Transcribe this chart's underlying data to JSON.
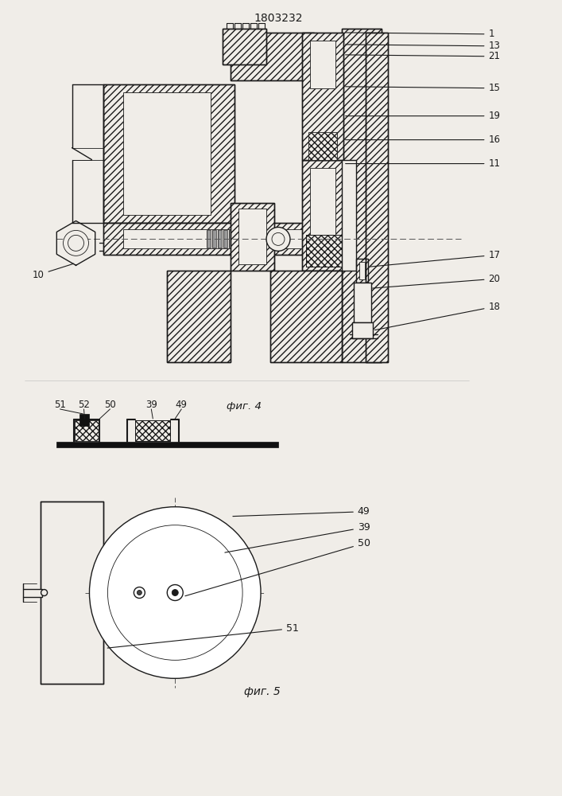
{
  "title": "1803232",
  "background_color": "#f0ede8",
  "line_color": "#1a1a1a",
  "fig4_label": "фиг. 4",
  "fig5_label": "фиг. 5"
}
